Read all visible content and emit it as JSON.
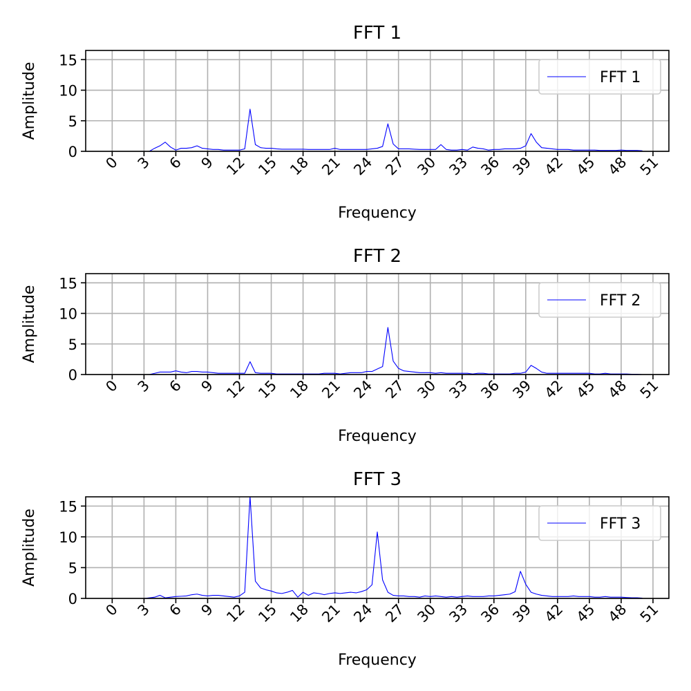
{
  "charts": [
    {
      "type": "line",
      "title": "FFT 1",
      "xlabel": "Frequency",
      "ylabel": "Amplitude",
      "xlim": [
        -2.5,
        52.5
      ],
      "ylim": [
        0,
        16.5
      ],
      "xticks": [
        0,
        3,
        6,
        9,
        12,
        15,
        18,
        21,
        24,
        27,
        30,
        33,
        36,
        39,
        42,
        45,
        48,
        51
      ],
      "yticks": [
        0,
        5,
        10,
        15
      ],
      "grid": true,
      "legend_position": "upper right",
      "series": [
        {
          "name": "FFT 1",
          "color": "#0000ff",
          "x": [
            0,
            0.5,
            1,
            1.5,
            2,
            2.5,
            3,
            3.5,
            4,
            4.5,
            5,
            5.5,
            6,
            6.5,
            7,
            7.5,
            8,
            8.5,
            9,
            9.5,
            10,
            10.5,
            11,
            11.5,
            12,
            12.5,
            13,
            13.5,
            14,
            14.5,
            15,
            15.5,
            16,
            16.5,
            17,
            17.5,
            18,
            18.5,
            19,
            19.5,
            20,
            20.5,
            21,
            21.5,
            22,
            22.5,
            23,
            23.5,
            24,
            24.5,
            25,
            25.5,
            26,
            26.5,
            27,
            27.5,
            28,
            28.5,
            29,
            29.5,
            30,
            30.5,
            31,
            31.5,
            32,
            32.5,
            33,
            33.5,
            34,
            34.5,
            35,
            35.5,
            36,
            36.5,
            37,
            37.5,
            38,
            38.5,
            39,
            39.5,
            40,
            40.5,
            41,
            41.5,
            42,
            42.5,
            43,
            43.5,
            44,
            44.5,
            45,
            45.5,
            46,
            46.5,
            47,
            47.5,
            48,
            48.5,
            49,
            49.5,
            50
          ],
          "values": [
            0,
            0,
            0,
            0,
            0,
            0,
            0,
            0,
            0.5,
            0.9,
            1.5,
            0.7,
            0.2,
            0.5,
            0.5,
            0.6,
            0.9,
            0.5,
            0.4,
            0.3,
            0.3,
            0.2,
            0.2,
            0.2,
            0.2,
            0.4,
            6.9,
            1.1,
            0.6,
            0.5,
            0.5,
            0.4,
            0.35,
            0.35,
            0.35,
            0.35,
            0.35,
            0.3,
            0.3,
            0.3,
            0.3,
            0.3,
            0.5,
            0.3,
            0.3,
            0.3,
            0.3,
            0.3,
            0.3,
            0.4,
            0.5,
            0.8,
            4.5,
            1.2,
            0.4,
            0.4,
            0.4,
            0.35,
            0.3,
            0.3,
            0.3,
            0.3,
            1.1,
            0.3,
            0.2,
            0.2,
            0.3,
            0.2,
            0.7,
            0.5,
            0.4,
            0.2,
            0.3,
            0.3,
            0.4,
            0.4,
            0.4,
            0.5,
            0.9,
            2.9,
            1.5,
            0.6,
            0.5,
            0.4,
            0.3,
            0.3,
            0.3,
            0.2,
            0.2,
            0.2,
            0.2,
            0.2,
            0.15,
            0.15,
            0.15,
            0.15,
            0.2,
            0.15,
            0.15,
            0.15,
            0.1
          ]
        }
      ]
    },
    {
      "type": "line",
      "title": "FFT 2",
      "xlabel": "Frequency",
      "ylabel": "Amplitude",
      "xlim": [
        -2.5,
        52.5
      ],
      "ylim": [
        0,
        16.5
      ],
      "xticks": [
        0,
        3,
        6,
        9,
        12,
        15,
        18,
        21,
        24,
        27,
        30,
        33,
        36,
        39,
        42,
        45,
        48,
        51
      ],
      "yticks": [
        0,
        5,
        10,
        15
      ],
      "grid": true,
      "legend_position": "upper right",
      "series": [
        {
          "name": "FFT 2",
          "color": "#0000ff",
          "x": [
            0,
            0.5,
            1,
            1.5,
            2,
            2.5,
            3,
            3.5,
            4,
            4.5,
            5,
            5.5,
            6,
            6.5,
            7,
            7.5,
            8,
            8.5,
            9,
            9.5,
            10,
            10.5,
            11,
            11.5,
            12,
            12.5,
            13,
            13.5,
            14,
            14.5,
            15,
            15.5,
            16,
            16.5,
            17,
            17.5,
            18,
            18.5,
            19,
            19.5,
            20,
            20.5,
            21,
            21.5,
            22,
            22.5,
            23,
            23.5,
            24,
            24.5,
            25,
            25.5,
            26,
            26.5,
            27,
            27.5,
            28,
            28.5,
            29,
            29.5,
            30,
            30.5,
            31,
            31.5,
            32,
            32.5,
            33,
            33.5,
            34,
            34.5,
            35,
            35.5,
            36,
            36.5,
            37,
            37.5,
            38,
            38.5,
            39,
            39.5,
            40,
            40.5,
            41,
            41.5,
            42,
            42.5,
            43,
            43.5,
            44,
            44.5,
            45,
            45.5,
            46,
            46.5,
            47,
            47.5,
            48,
            48.5,
            49,
            49.5,
            50
          ],
          "values": [
            0,
            0,
            0,
            0,
            0,
            0,
            0,
            0,
            0.2,
            0.4,
            0.4,
            0.4,
            0.6,
            0.4,
            0.3,
            0.5,
            0.5,
            0.4,
            0.4,
            0.3,
            0.2,
            0.2,
            0.2,
            0.2,
            0.2,
            0.2,
            2.1,
            0.3,
            0.2,
            0.2,
            0.2,
            0.1,
            0.1,
            0.1,
            0.1,
            0.1,
            0.1,
            0.1,
            0.1,
            0.1,
            0.2,
            0.2,
            0.2,
            0.1,
            0.2,
            0.3,
            0.3,
            0.3,
            0.5,
            0.5,
            0.9,
            1.3,
            7.7,
            2.2,
            1.0,
            0.6,
            0.5,
            0.4,
            0.3,
            0.3,
            0.3,
            0.2,
            0.3,
            0.2,
            0.2,
            0.2,
            0.2,
            0.2,
            0.1,
            0.2,
            0.2,
            0.1,
            0.1,
            0.1,
            0.1,
            0.1,
            0.2,
            0.2,
            0.4,
            1.5,
            1.0,
            0.4,
            0.2,
            0.2,
            0.2,
            0.2,
            0.2,
            0.2,
            0.2,
            0.2,
            0.2,
            0.1,
            0.1,
            0.2,
            0.1,
            0.1,
            0.1,
            0.1,
            0.05,
            0.05,
            0
          ]
        }
      ]
    },
    {
      "type": "line",
      "title": "FFT 3",
      "xlabel": "Frequency",
      "ylabel": "Amplitude",
      "xlim": [
        -2.5,
        52.5
      ],
      "ylim": [
        0,
        16.5
      ],
      "xticks": [
        0,
        3,
        6,
        9,
        12,
        15,
        18,
        21,
        24,
        27,
        30,
        33,
        36,
        39,
        42,
        45,
        48,
        51
      ],
      "yticks": [
        0,
        5,
        10,
        15
      ],
      "grid": true,
      "legend_position": "upper right",
      "series": [
        {
          "name": "FFT 3",
          "color": "#0000ff",
          "x": [
            0,
            0.5,
            1,
            1.5,
            2,
            2.5,
            3,
            3.5,
            4,
            4.5,
            5,
            5.5,
            6,
            6.5,
            7,
            7.5,
            8,
            8.5,
            9,
            9.5,
            10,
            10.5,
            11,
            11.5,
            12,
            12.5,
            13,
            13.5,
            14,
            14.5,
            15,
            15.5,
            16,
            16.5,
            17,
            17.5,
            18,
            18.5,
            19,
            19.5,
            20,
            20.5,
            21,
            21.5,
            22,
            22.5,
            23,
            23.5,
            24,
            24.5,
            25,
            25.5,
            26,
            26.5,
            27,
            27.5,
            28,
            28.5,
            29,
            29.5,
            30,
            30.5,
            31,
            31.5,
            32,
            32.5,
            33,
            33.5,
            34,
            34.5,
            35,
            35.5,
            36,
            36.5,
            37,
            37.5,
            38,
            38.5,
            39,
            39.5,
            40,
            40.5,
            41,
            41.5,
            42,
            42.5,
            43,
            43.5,
            44,
            44.5,
            45,
            45.5,
            46,
            46.5,
            47,
            47.5,
            48,
            48.5,
            49,
            49.5,
            50
          ],
          "values": [
            0,
            0,
            0,
            0,
            0,
            0,
            0,
            0.1,
            0.2,
            0.5,
            0.1,
            0.2,
            0.3,
            0.35,
            0.4,
            0.6,
            0.7,
            0.5,
            0.4,
            0.5,
            0.5,
            0.4,
            0.3,
            0.2,
            0.4,
            1.0,
            16.6,
            2.8,
            1.7,
            1.4,
            1.2,
            0.9,
            0.8,
            1.0,
            1.3,
            0.2,
            1.0,
            0.5,
            0.9,
            0.8,
            0.6,
            0.8,
            0.9,
            0.8,
            0.9,
            1.0,
            0.9,
            1.1,
            1.4,
            2.2,
            10.8,
            3.0,
            1.0,
            0.5,
            0.4,
            0.4,
            0.3,
            0.3,
            0.2,
            0.4,
            0.3,
            0.4,
            0.3,
            0.2,
            0.3,
            0.2,
            0.3,
            0.4,
            0.3,
            0.3,
            0.3,
            0.4,
            0.4,
            0.5,
            0.6,
            0.7,
            1.1,
            4.4,
            2.3,
            1.0,
            0.7,
            0.5,
            0.4,
            0.3,
            0.3,
            0.3,
            0.3,
            0.4,
            0.3,
            0.3,
            0.3,
            0.2,
            0.2,
            0.3,
            0.2,
            0.2,
            0.2,
            0.15,
            0.1,
            0.1,
            0.05
          ]
        }
      ]
    }
  ]
}
